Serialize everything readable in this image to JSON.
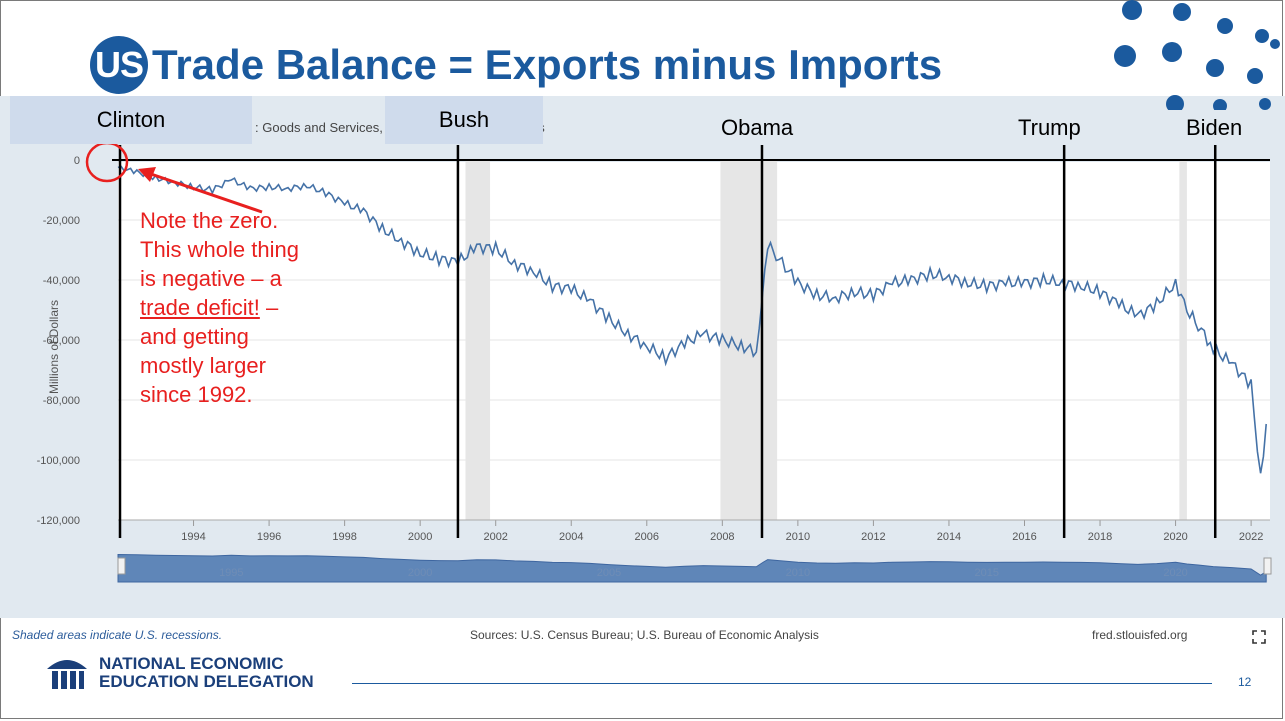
{
  "title": {
    "badge": "US",
    "text": "Trade Balance = Exports minus Imports"
  },
  "chart_header": ": Goods and Services, Balance of Payments Basis",
  "presidents": [
    {
      "name": "Clinton",
      "year": 1993.0
    },
    {
      "name": "Bush",
      "year": 2001.0
    },
    {
      "name": "Obama",
      "year": 2009.05
    },
    {
      "name": "Trump",
      "year": 2017.05
    },
    {
      "name": "Biden",
      "year": 2021.05
    }
  ],
  "note": {
    "line1": "Note the zero.",
    "line2": "This whole thing",
    "line3": "is negative – a",
    "line4_underlined": "trade deficit!",
    "line4_rest": " –",
    "line5": "and getting",
    "line6": "mostly larger",
    "line7": "since 1992."
  },
  "footer": {
    "recession_note": "Shaded areas indicate U.S. recessions.",
    "sources": "Sources: U.S. Census Bureau; U.S. Bureau of Economic Analysis",
    "fred": "fred.stlouisfed.org"
  },
  "logo": {
    "line1": "NATIONAL ECONOMIC",
    "line2": "EDUCATION DELEGATION"
  },
  "page_number": "12",
  "colors": {
    "title": "#1b5a9e",
    "series": "#4572a7",
    "note": "#e8201f",
    "recession": "#e6e6e6"
  },
  "chart_data": {
    "type": "line",
    "title": "",
    "ylabel": "Millions of Dollars",
    "xlabel": "",
    "xlim": [
      1992.0,
      2022.5
    ],
    "ylim": [
      -120000,
      0
    ],
    "yticks": [
      0,
      -20000,
      -40000,
      -60000,
      -80000,
      -100000,
      -120000
    ],
    "ytick_labels": [
      "0",
      "-20,000",
      "-40,000",
      "-60,000",
      "-80,000",
      "-100,000",
      "-120,000"
    ],
    "xticks": [
      1994,
      1996,
      1998,
      2000,
      2002,
      2004,
      2006,
      2008,
      2010,
      2012,
      2014,
      2016,
      2018,
      2020,
      2022
    ],
    "xtick_labels": [
      "1994",
      "1996",
      "1998",
      "2000",
      "2002",
      "2004",
      "2006",
      "2008",
      "2010",
      "2012",
      "2014",
      "2016",
      "2018",
      "2020",
      "2022"
    ],
    "navigator_labels": [
      "1995",
      "2000",
      "2005",
      "2010",
      "2015",
      "2020"
    ],
    "recessions": [
      [
        2001.2,
        2001.85
      ],
      [
        2007.95,
        2009.45
      ],
      [
        2020.1,
        2020.3
      ]
    ],
    "grid": true,
    "series": [
      {
        "x": [
          1992.0,
          1992.5,
          1993.0,
          1993.5,
          1994.0,
          1994.5,
          1995.0,
          1995.5,
          1996.0,
          1996.5,
          1997.0,
          1997.5,
          1998.0,
          1998.5,
          1999.0,
          1999.5,
          2000.0,
          2000.5,
          2001.0,
          2001.5,
          2002.0,
          2002.5,
          2003.0,
          2003.5,
          2004.0,
          2004.5,
          2005.0,
          2005.5,
          2006.0,
          2006.5,
          2007.0,
          2007.5,
          2008.0,
          2008.5,
          2008.9,
          2009.05,
          2009.2,
          2009.5,
          2010.0,
          2010.5,
          2011.0,
          2011.5,
          2012.0,
          2012.5,
          2013.0,
          2013.5,
          2014.0,
          2014.5,
          2015.0,
          2015.5,
          2016.0,
          2016.5,
          2017.0,
          2017.5,
          2018.0,
          2018.5,
          2019.0,
          2019.5,
          2020.0,
          2020.3,
          2020.6,
          2021.0,
          2021.5,
          2022.0,
          2022.25,
          2022.4
        ],
        "y": [
          -2500,
          -4000,
          -6000,
          -7500,
          -9000,
          -10000,
          -6500,
          -9500,
          -9000,
          -9500,
          -8500,
          -11000,
          -14500,
          -17000,
          -23000,
          -27000,
          -31000,
          -33000,
          -34000,
          -29000,
          -29500,
          -34500,
          -37000,
          -42000,
          -43000,
          -47000,
          -53000,
          -58000,
          -62000,
          -66000,
          -61000,
          -58000,
          -60000,
          -62000,
          -64000,
          -45000,
          -28000,
          -33000,
          -41000,
          -45000,
          -46000,
          -44000,
          -45000,
          -41000,
          -40000,
          -38000,
          -39000,
          -41000,
          -42000,
          -41000,
          -41000,
          -40000,
          -41000,
          -42000,
          -44000,
          -48000,
          -52000,
          -48000,
          -41000,
          -50000,
          -55000,
          -63000,
          -68000,
          -75000,
          -106000,
          -88000
        ]
      }
    ]
  }
}
